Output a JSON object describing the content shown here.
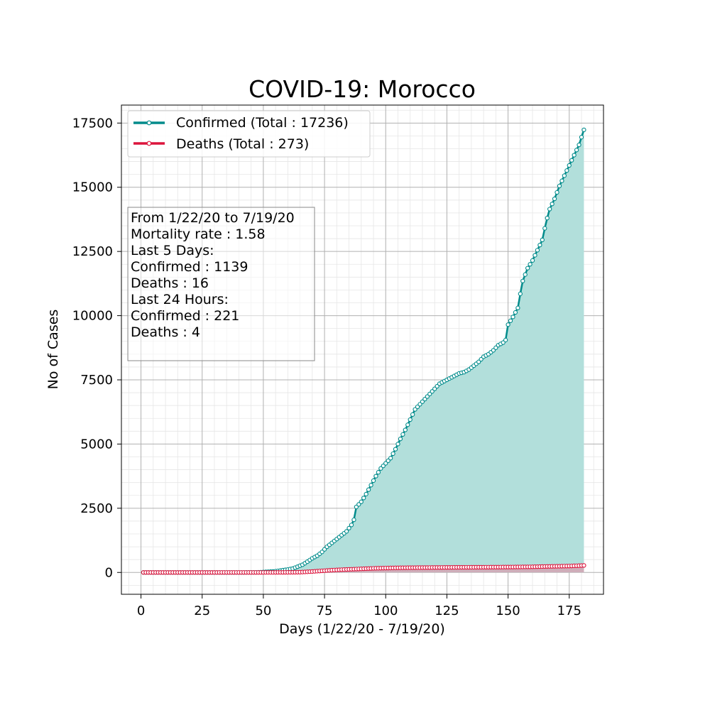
{
  "chart_data": {
    "type": "line",
    "title": "COVID-19: Morocco",
    "xlabel": "Days (1/22/20 - 7/19/20)",
    "ylabel": "No of Cases",
    "xlim": [
      -8,
      189
    ],
    "ylim": [
      -850,
      18200
    ],
    "xticks": [
      0,
      25,
      50,
      75,
      100,
      125,
      150,
      175
    ],
    "yticks": [
      0,
      2500,
      5000,
      7500,
      10000,
      12500,
      15000,
      17500
    ],
    "grid": true,
    "legend_position": "top-left",
    "colors": {
      "confirmed": "#008b8b",
      "deaths": "#dc143c",
      "confirmed_fill": "#b2dfdb",
      "deaths_fill": "#d4a4b3"
    },
    "series": [
      {
        "name": "Confirmed (Total : 17236)",
        "key": "confirmed",
        "knots": [
          [
            1,
            0
          ],
          [
            41,
            0
          ],
          [
            42,
            1
          ],
          [
            45,
            2
          ],
          [
            48,
            6
          ],
          [
            50,
            17
          ],
          [
            52,
            28
          ],
          [
            54,
            38
          ],
          [
            56,
            60
          ],
          [
            58,
            90
          ],
          [
            60,
            115
          ],
          [
            62,
            150
          ],
          [
            64,
            225
          ],
          [
            66,
            300
          ],
          [
            68,
            420
          ],
          [
            70,
            550
          ],
          [
            72,
            650
          ],
          [
            74,
            800
          ],
          [
            76,
            1000
          ],
          [
            78,
            1150
          ],
          [
            80,
            1300
          ],
          [
            82,
            1450
          ],
          [
            84,
            1600
          ],
          [
            86,
            1850
          ],
          [
            87,
            2050
          ],
          [
            88,
            2550
          ],
          [
            90,
            2750
          ],
          [
            92,
            3050
          ],
          [
            94,
            3400
          ],
          [
            96,
            3750
          ],
          [
            98,
            4050
          ],
          [
            100,
            4250
          ],
          [
            102,
            4450
          ],
          [
            104,
            4800
          ],
          [
            106,
            5200
          ],
          [
            108,
            5550
          ],
          [
            110,
            5950
          ],
          [
            112,
            6350
          ],
          [
            114,
            6550
          ],
          [
            116,
            6750
          ],
          [
            118,
            6950
          ],
          [
            120,
            7150
          ],
          [
            122,
            7350
          ],
          [
            124,
            7450
          ],
          [
            126,
            7550
          ],
          [
            128,
            7650
          ],
          [
            130,
            7750
          ],
          [
            132,
            7800
          ],
          [
            134,
            7900
          ],
          [
            136,
            8050
          ],
          [
            138,
            8200
          ],
          [
            140,
            8400
          ],
          [
            142,
            8500
          ],
          [
            144,
            8650
          ],
          [
            146,
            8850
          ],
          [
            148,
            8950
          ],
          [
            149,
            9050
          ],
          [
            150,
            9650
          ],
          [
            152,
            9950
          ],
          [
            154,
            10300
          ],
          [
            155,
            10850
          ],
          [
            156,
            11350
          ],
          [
            158,
            11850
          ],
          [
            160,
            12150
          ],
          [
            162,
            12550
          ],
          [
            164,
            12950
          ],
          [
            165,
            13400
          ],
          [
            166,
            13800
          ],
          [
            167,
            14150
          ],
          [
            169,
            14550
          ],
          [
            171,
            15050
          ],
          [
            173,
            15450
          ],
          [
            175,
            15850
          ],
          [
            177,
            16250
          ],
          [
            179,
            16650
          ],
          [
            180,
            16950
          ],
          [
            181,
            17236
          ]
        ]
      },
      {
        "name": "Deaths (Total : 273)",
        "key": "deaths",
        "knots": [
          [
            1,
            0
          ],
          [
            50,
            1
          ],
          [
            55,
            2
          ],
          [
            60,
            5
          ],
          [
            65,
            10
          ],
          [
            70,
            36
          ],
          [
            75,
            70
          ],
          [
            80,
            100
          ],
          [
            85,
            120
          ],
          [
            90,
            140
          ],
          [
            95,
            160
          ],
          [
            100,
            170
          ],
          [
            105,
            180
          ],
          [
            110,
            186
          ],
          [
            120,
            192
          ],
          [
            130,
            200
          ],
          [
            140,
            204
          ],
          [
            150,
            210
          ],
          [
            160,
            220
          ],
          [
            165,
            232
          ],
          [
            170,
            240
          ],
          [
            175,
            250
          ],
          [
            177,
            257
          ],
          [
            179,
            264
          ],
          [
            181,
            273
          ]
        ]
      }
    ],
    "annotation": {
      "lines": [
        "From 1/22/20 to 7/19/20",
        "Mortality rate : 1.58",
        "Last 5 Days:",
        "Confirmed : 1139",
        "Deaths : 16",
        "Last 24 Hours:",
        "Confirmed : 221",
        "Deaths : 4"
      ]
    }
  }
}
